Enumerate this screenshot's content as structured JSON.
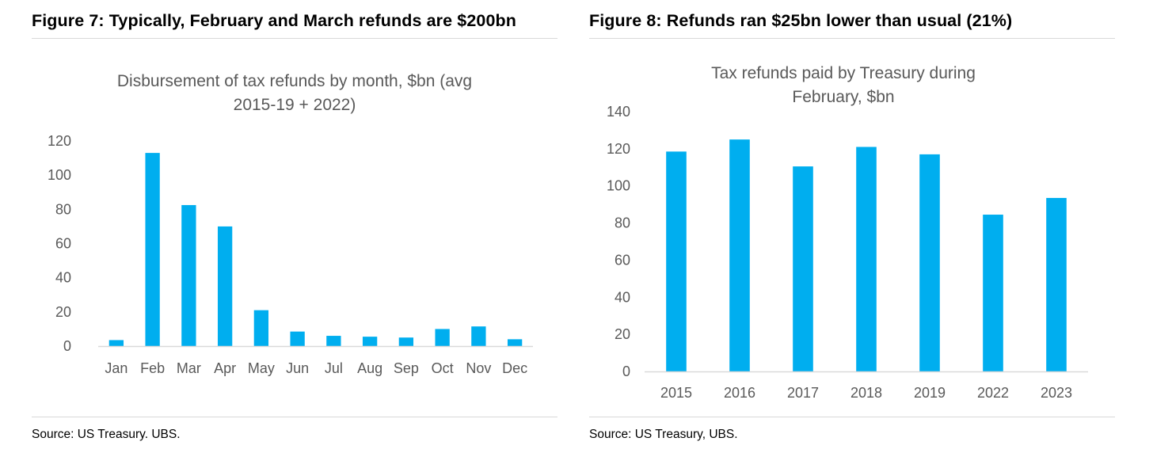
{
  "figures": [
    {
      "heading": "Figure 7: Typically, February and March refunds are $200bn",
      "source": "Source: US Treasury. UBS.",
      "chart_data": {
        "type": "bar",
        "title_lines": [
          "Disbursement of tax refunds by month, $bn (avg",
          "2015-19 + 2022)"
        ],
        "categories": [
          "Jan",
          "Feb",
          "Mar",
          "Apr",
          "May",
          "Jun",
          "Jul",
          "Aug",
          "Sep",
          "Oct",
          "Nov",
          "Dec"
        ],
        "values": [
          3.5,
          113,
          82.5,
          70,
          21,
          8.5,
          6,
          5.5,
          5,
          10,
          11.5,
          4
        ],
        "ylim": [
          0,
          120
        ],
        "yticks": [
          0,
          20,
          40,
          60,
          80,
          100,
          120
        ],
        "xlabel": "",
        "ylabel": "",
        "grid": false,
        "bar_color": "#00aeef"
      }
    },
    {
      "heading": "Figure 8: Refunds ran $25bn lower than usual (21%)",
      "source": "Source: US Treasury, UBS.",
      "chart_data": {
        "type": "bar",
        "title_lines": [
          "Tax refunds paid by Treasury during",
          "February, $bn"
        ],
        "categories": [
          "2015",
          "2016",
          "2017",
          "2018",
          "2019",
          "2022",
          "2023"
        ],
        "values": [
          118.5,
          125,
          110.5,
          121,
          117,
          84.5,
          93.5
        ],
        "ylim": [
          0,
          140
        ],
        "yticks": [
          0,
          20,
          40,
          60,
          80,
          100,
          120,
          140
        ],
        "xlabel": "",
        "ylabel": "",
        "grid": false,
        "bar_color": "#00aeef"
      }
    }
  ]
}
